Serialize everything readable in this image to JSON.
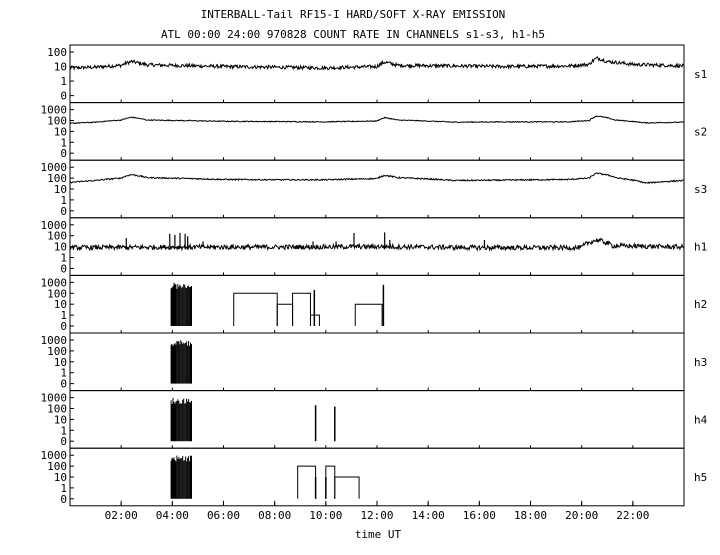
{
  "header": {
    "title": "INTERBALL-Tail RF15-I HARD/SOFT X-RAY EMISSION",
    "subtitle": "ATL 00:00 24:00 970828  COUNT RATE IN CHANNELS s1-s3, h1-h5"
  },
  "chart_data": {
    "type": "line",
    "x_range": [
      0,
      24
    ],
    "x_ticks": [
      {
        "v": 2,
        "label": "02:00"
      },
      {
        "v": 4,
        "label": "04:00"
      },
      {
        "v": 6,
        "label": "06:00"
      },
      {
        "v": 8,
        "label": "08:00"
      },
      {
        "v": 10,
        "label": "10:00"
      },
      {
        "v": 12,
        "label": "12:00"
      },
      {
        "v": 14,
        "label": "14:00"
      },
      {
        "v": 16,
        "label": "16:00"
      },
      {
        "v": 18,
        "label": "18:00"
      },
      {
        "v": 20,
        "label": "20:00"
      },
      {
        "v": 22,
        "label": "22:00"
      }
    ],
    "xlabel": "time UT",
    "y_scale": "log",
    "panels": [
      {
        "name": "s1",
        "y_ticks": [
          "100",
          "10",
          "1",
          "0"
        ],
        "kind": "noisy",
        "baseline": [
          [
            0,
            8
          ],
          [
            1,
            9
          ],
          [
            2,
            12
          ],
          [
            2.4,
            22
          ],
          [
            3,
            13
          ],
          [
            6,
            10
          ],
          [
            10,
            8
          ],
          [
            12,
            10
          ],
          [
            12.3,
            20
          ],
          [
            12.8,
            12
          ],
          [
            17,
            10
          ],
          [
            19.5,
            11
          ],
          [
            20.3,
            14
          ],
          [
            20.6,
            38
          ],
          [
            21,
            22
          ],
          [
            22,
            14
          ],
          [
            24,
            11
          ]
        ],
        "noise": 0.12,
        "spikes": []
      },
      {
        "name": "s2",
        "y_ticks": [
          "1000",
          "100",
          "10",
          "1",
          "0"
        ],
        "kind": "noisy",
        "baseline": [
          [
            0,
            55
          ],
          [
            1,
            70
          ],
          [
            2,
            110
          ],
          [
            2.4,
            200
          ],
          [
            3,
            110
          ],
          [
            6,
            85
          ],
          [
            8,
            80
          ],
          [
            10,
            75
          ],
          [
            12,
            90
          ],
          [
            12.3,
            180
          ],
          [
            12.8,
            110
          ],
          [
            15,
            70
          ],
          [
            17,
            75
          ],
          [
            19.5,
            75
          ],
          [
            20.3,
            100
          ],
          [
            20.6,
            260
          ],
          [
            21.3,
            110
          ],
          [
            22.5,
            60
          ],
          [
            24,
            70
          ]
        ],
        "noise": 0.04,
        "spikes": []
      },
      {
        "name": "s3",
        "y_ticks": [
          "1000",
          "100",
          "10",
          "1",
          "0"
        ],
        "kind": "noisy",
        "baseline": [
          [
            0,
            40
          ],
          [
            1,
            60
          ],
          [
            2,
            100
          ],
          [
            2.4,
            210
          ],
          [
            3,
            110
          ],
          [
            6,
            75
          ],
          [
            8,
            70
          ],
          [
            10,
            70
          ],
          [
            12,
            90
          ],
          [
            12.3,
            180
          ],
          [
            12.8,
            110
          ],
          [
            15,
            60
          ],
          [
            17,
            65
          ],
          [
            19.5,
            75
          ],
          [
            20.3,
            100
          ],
          [
            20.6,
            280
          ],
          [
            21.4,
            100
          ],
          [
            22.5,
            35
          ],
          [
            24,
            60
          ]
        ],
        "noise": 0.06,
        "spikes": []
      },
      {
        "name": "h1",
        "y_ticks": [
          "1000",
          "100",
          "10",
          "1",
          "0"
        ],
        "kind": "noisy",
        "baseline": [
          [
            0,
            8
          ],
          [
            4,
            9
          ],
          [
            8,
            9
          ],
          [
            12,
            10
          ],
          [
            16,
            8
          ],
          [
            20,
            8
          ],
          [
            20.6,
            40
          ],
          [
            21.2,
            12
          ],
          [
            24,
            9
          ]
        ],
        "noise": 0.22,
        "spikes": [
          [
            2.2,
            60
          ],
          [
            3.9,
            150
          ],
          [
            4.1,
            120
          ],
          [
            4.3,
            180
          ],
          [
            4.5,
            150
          ],
          [
            4.6,
            90
          ],
          [
            5.2,
            30
          ],
          [
            9.5,
            30
          ],
          [
            10.4,
            30
          ],
          [
            11.1,
            180
          ],
          [
            12.3,
            200
          ],
          [
            12.5,
            40
          ],
          [
            16.2,
            40
          ]
        ]
      },
      {
        "name": "h2",
        "y_ticks": [
          "1000",
          "100",
          "10",
          "1",
          "0"
        ],
        "kind": "sparse",
        "bursts": [
          [
            3.95,
            4.75,
            1000
          ]
        ],
        "steps": [
          [
            6.4,
            8.1,
            100
          ],
          [
            8.1,
            8.7,
            10
          ],
          [
            8.7,
            9.4,
            100
          ],
          [
            9.4,
            9.75,
            1
          ],
          [
            9.75,
            10
          ],
          [
            11.15,
            12.2,
            10
          ]
        ],
        "lines": [
          [
            9.55,
            200
          ],
          [
            12.25,
            600
          ]
        ]
      },
      {
        "name": "h3",
        "y_ticks": [
          "1000",
          "100",
          "10",
          "1",
          "0"
        ],
        "kind": "sparse",
        "bursts": [
          [
            3.95,
            4.75,
            1000
          ]
        ],
        "steps": [],
        "lines": []
      },
      {
        "name": "h4",
        "y_ticks": [
          "1000",
          "100",
          "10",
          "1",
          "0"
        ],
        "kind": "sparse",
        "bursts": [
          [
            3.95,
            4.75,
            1000
          ]
        ],
        "steps": [],
        "lines": [
          [
            9.6,
            200
          ],
          [
            10.35,
            150
          ]
        ]
      },
      {
        "name": "h5",
        "y_ticks": [
          "1000",
          "100",
          "10",
          "1",
          "0"
        ],
        "kind": "sparse",
        "bursts": [
          [
            3.95,
            4.75,
            1000
          ]
        ],
        "steps": [
          [
            8.9,
            9.6,
            100
          ],
          [
            10.0,
            10.35,
            100
          ],
          [
            10.35,
            11.3,
            10
          ]
        ],
        "lines": [
          [
            9.6,
            10
          ],
          [
            10.0,
            10
          ]
        ]
      }
    ],
    "grid": false,
    "line_color": "#000000"
  }
}
